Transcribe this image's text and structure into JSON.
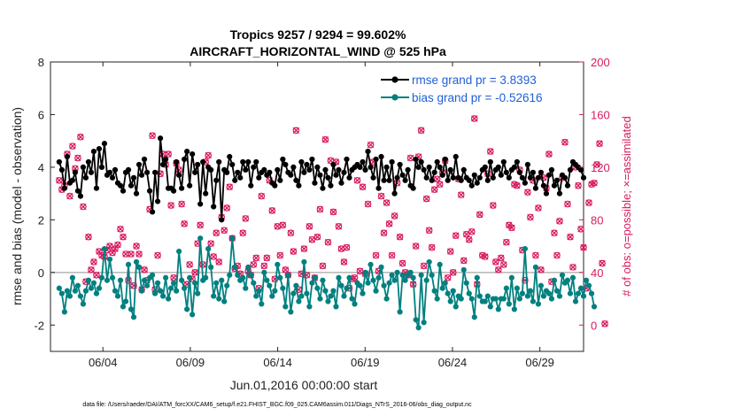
{
  "chart_data": {
    "type": "line",
    "title": "Tropics 9257 / 9294 = 99.602%",
    "subtitle": "AIRCRAFT_HORIZONTAL_WIND @ 525 hPa",
    "xlabel": "Jun.01,2016 00:00:00 start",
    "ylabel": "rmse and bias (model - observation)",
    "y2label": "# of obs: o=possible; ×=assimilated",
    "footnote": "data file: /Users/raeder/DAI/ATM_forcXX/CAM6_setup/f.e21.FHIST_BGC.f09_025.CAM6assim.011/Diags_NTrS_2016-06/obs_diag_output.nc",
    "x_range_days": [
      0.5,
      31
    ],
    "ylim": [
      -3,
      8
    ],
    "y2lim": [
      -20,
      200
    ],
    "yticks": [
      "-2",
      "0",
      "2",
      "4",
      "6",
      "8"
    ],
    "y2ticks": [
      "0",
      "40",
      "80",
      "120",
      "160",
      "200"
    ],
    "xtick_days": [
      3.5,
      8.5,
      13.5,
      18.5,
      23.5,
      28.5
    ],
    "xtick_labels": [
      "06/04",
      "06/09",
      "06/14",
      "06/19",
      "06/24",
      "06/29"
    ],
    "zero_line": 0,
    "colors": {
      "rmse": "#000000",
      "bias": "#00807f",
      "obs": "#d81b60",
      "legend_text": "#1f5fd6",
      "zero": "#bbbbbb"
    },
    "legend_position": "top-right",
    "series": [
      {
        "name": "rmse grand pr = 3.8393",
        "key": "rmse",
        "values": [
          4.2,
          3.9,
          3.2,
          4.4,
          3.4,
          3.5,
          3.8,
          3.1,
          2.9,
          4.0,
          3.6,
          4.2,
          3.8,
          4.6,
          3.2,
          4.7,
          4.0,
          4.9,
          3.7,
          3.8,
          3.6,
          3.9,
          3.4,
          3.3,
          3.1,
          3.8,
          3.9,
          3.3,
          3.6,
          3.0,
          4.1,
          3.7,
          4.3,
          3.8,
          3.1,
          2.3,
          3.8,
          2.7,
          5.1,
          4.1,
          4.3,
          3.2,
          3.2,
          3.1,
          4.2,
          3.7,
          3.2,
          4.3,
          4.6,
          3.3,
          4.5,
          3.8,
          4.1,
          2.6,
          4.2,
          3.0,
          4.0,
          3.9,
          2.5,
          3.5,
          4.2,
          2.0,
          3.9,
          3.8,
          4.4,
          4.1,
          3.5,
          3.8,
          3.6,
          4.2,
          3.9,
          4.2,
          3.3,
          4.0,
          4.2,
          3.6,
          3.8,
          3.9,
          3.7,
          3.8,
          3.4,
          3.3,
          3.9,
          3.5,
          4.3,
          4.1,
          3.8,
          3.7,
          4.0,
          3.5,
          3.3,
          4.2,
          3.8,
          4.1,
          3.9,
          4.3,
          3.4,
          4.0,
          3.7,
          3.2,
          3.9,
          3.6,
          3.3,
          4.1,
          3.7,
          3.9,
          3.4,
          3.8,
          4.3,
          3.6,
          3.9,
          4.0,
          4.1,
          4.0,
          4.2,
          3.9,
          4.6,
          4.0,
          3.6,
          4.3,
          3.2,
          4.4,
          3.5,
          4.0,
          3.5,
          4.2,
          3.0,
          3.6,
          4.1,
          3.7,
          3.5,
          3.9,
          3.3,
          3.2,
          4.3,
          4.0,
          4.2,
          3.9,
          3.6,
          4.0,
          3.5,
          3.8,
          4.2,
          4.0,
          3.7,
          4.3,
          3.5,
          3.9,
          3.6,
          4.4,
          3.6,
          3.5,
          3.9,
          3.6,
          3.5,
          3.3,
          3.7,
          3.4,
          3.6,
          3.9,
          4.0,
          3.5,
          4.2,
          3.6,
          3.9,
          4.0,
          3.7,
          4.2,
          3.8,
          3.6,
          3.9,
          4.0,
          4.2,
          3.8,
          3.6,
          3.4,
          4.1,
          3.6,
          3.8,
          3.2,
          3.6,
          3.8,
          3.3,
          3.0,
          3.7,
          3.9,
          3.3,
          3.5,
          3.0,
          3.7,
          3.6,
          3.3,
          3.9,
          4.2,
          4.1,
          4.0,
          3.9,
          3.6
        ]
      },
      {
        "name": "bias grand pr = -0.52616",
        "key": "bias",
        "values": [
          -0.6,
          -0.8,
          -1.5,
          -0.7,
          -0.9,
          -0.2,
          -0.7,
          -0.5,
          -0.9,
          -1.2,
          -0.7,
          -0.3,
          -0.6,
          -0.4,
          -0.8,
          -0.6,
          -0.2,
          0.9,
          -0.3,
          0.5,
          -0.2,
          -0.7,
          -0.9,
          -0.3,
          -1.3,
          -1.1,
          0.3,
          -1.4,
          -1.7,
          0.4,
          0.2,
          -0.7,
          -0.3,
          -0.5,
          -0.2,
          -0.1,
          -0.8,
          -0.4,
          -0.7,
          -0.9,
          -0.2,
          -1.0,
          -0.6,
          -0.4,
          -0.7,
          0.8,
          -0.3,
          -0.6,
          -1.4,
          -0.2,
          -1.6,
          -0.4,
          -0.8,
          1.3,
          -0.3,
          -0.2,
          0.9,
          0.2,
          -0.9,
          -0.4,
          -1.0,
          -0.3,
          -1.1,
          -0.5,
          -0.1,
          1.3,
          0.2,
          -0.1,
          -0.3,
          -0.2,
          -0.6,
          0.2,
          -0.1,
          -0.4,
          -0.9,
          -0.7,
          -1.2,
          0.0,
          -0.3,
          -0.5,
          -0.9,
          -0.7,
          0.3,
          -0.2,
          -0.6,
          -1.3,
          -0.1,
          -1.5,
          -0.8,
          -0.5,
          -1.1,
          -0.9,
          0.4,
          -0.8,
          -1.3,
          -0.4,
          -0.2,
          -0.6,
          -1.0,
          -0.3,
          -0.7,
          -1.1,
          -0.9,
          -0.7,
          -1.3,
          -0.2,
          -0.5,
          -0.9,
          -0.6,
          -0.2,
          -1.0,
          -1.2,
          -0.4,
          -0.5,
          -0.8,
          0.0,
          -0.4,
          0.3,
          -0.3,
          -0.7,
          -0.2,
          0.2,
          -0.5,
          -1.0,
          -0.4,
          -0.1,
          -0.3,
          0.0,
          -1.5,
          -0.1,
          -0.3,
          -0.1,
          0.0,
          -0.2,
          -1.8,
          -2.1,
          -0.1,
          -1.9,
          -0.3,
          0.4,
          -0.1,
          -0.7,
          -1.0,
          0.3,
          -0.6,
          -0.4,
          -0.8,
          -1.1,
          -0.7,
          -1.3,
          -0.9,
          -1.0,
          0.1,
          -0.4,
          -0.8,
          -1.0,
          -1.7,
          -0.2,
          -0.9,
          -1.1,
          -1.1,
          -0.9,
          -1.3,
          -1.0,
          -1.0,
          -1.4,
          -1.0,
          -1.0,
          -0.6,
          -1.2,
          -0.2,
          -1.4,
          -0.6,
          -1.0,
          -0.8,
          0.9,
          -0.9,
          -0.7,
          -1.1,
          0.2,
          -1.2,
          -0.5,
          -0.9,
          -0.7,
          -0.8,
          -1.0,
          -0.3,
          -0.7,
          -0.9,
          -0.1,
          -0.4,
          -0.3,
          -0.8,
          -0.2,
          -1.1,
          -0.8,
          -0.6,
          -0.9,
          -0.3,
          -0.5,
          -0.8,
          -1.3
        ]
      },
      {
        "name": "# of obs possible / assimilated",
        "key": "obs",
        "values": [
          110,
          103,
          106,
          130,
          98,
          136,
          119,
          127,
          143,
          90,
          33,
          67,
          42,
          48,
          38,
          56,
          53,
          52,
          57,
          60,
          55,
          58,
          61,
          73,
          67,
          54,
          34,
          54,
          30,
          60,
          54,
          27,
          42,
          34,
          88,
          144,
          27,
          53,
          115,
          130,
          122,
          130,
          91,
          36,
          123,
          118,
          92,
          77,
          31,
          46,
          35,
          40,
          62,
          76,
          46,
          124,
          129,
          62,
          52,
          70,
          48,
          82,
          72,
          89,
          105,
          66,
          43,
          45,
          39,
          70,
          81,
          41,
          38,
          46,
          51,
          28,
          98,
          45,
          51,
          110,
          87,
          35,
          75,
          53,
          76,
          42,
          38,
          70,
          56,
          148,
          27,
          39,
          58,
          38,
          75,
          65,
          36,
          67,
          88,
          45,
          141,
          63,
          125,
          86,
          124,
          75,
          58,
          48,
          59,
          28,
          35,
          36,
          110,
          41,
          105,
          39,
          92,
          137,
          124,
          53,
          41,
          98,
          70,
          93,
          77,
          53,
          83,
          108,
          67,
          47,
          40,
          38,
          127,
          31,
          60,
          128,
          148,
          45,
          96,
          72,
          59,
          103,
          111,
          107,
          116,
          125,
          36,
          56,
          40,
          68,
          111,
          99,
          49,
          69,
          65,
          71,
          157,
          31,
          84,
          53,
          52,
          115,
          132,
          91,
          48,
          42,
          51,
          46,
          63,
          76,
          74,
          107,
          106,
          118,
          57,
          34,
          101,
          82,
          110,
          53,
          89,
          42,
          112,
          104,
          130,
          33,
          70,
          53,
          79,
          112,
          139,
          92,
          67,
          44,
          120,
          106,
          73,
          59,
          28,
          93,
          107,
          108,
          122,
          138,
          47,
          1
        ]
      }
    ]
  }
}
